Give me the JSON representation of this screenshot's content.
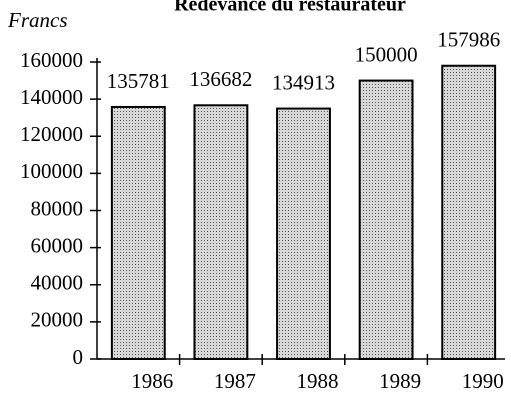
{
  "chart_data": {
    "type": "bar",
    "title": "Redevance du restaurateur",
    "y_label": "Francs",
    "categories": [
      "1986",
      "1987",
      "1988",
      "1989",
      "1990"
    ],
    "values": [
      135781,
      136682,
      134913,
      150000,
      157986
    ],
    "value_labels": [
      "135781",
      "136682",
      "134913",
      "150000",
      "157986"
    ],
    "color": "#b8b8b8",
    "ylim": [
      0,
      160000
    ],
    "yticks": [
      0,
      20000,
      40000,
      60000,
      80000,
      100000,
      120000,
      140000,
      160000
    ],
    "grid": false
  }
}
